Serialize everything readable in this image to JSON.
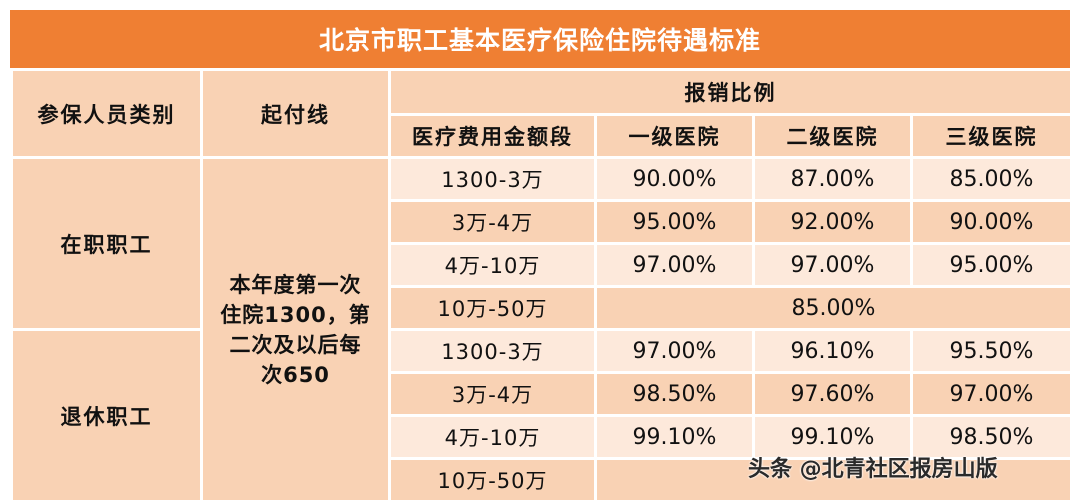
{
  "title": "北京市职工基本医疗保险住院待遇标准",
  "headers": {
    "category": "参保人员类别",
    "threshold": "起付线",
    "reimbursement": "报销比例",
    "band": "医疗费用金额段",
    "level1": "一级医院",
    "level2": "二级医院",
    "level3": "三级医院"
  },
  "threshold_lines": [
    "本年度第一次",
    "住院1300，第",
    "二次及以后每",
    "次650"
  ],
  "groups": [
    {
      "category": "在职职工",
      "rows": [
        {
          "band": "1300-3万",
          "level1": "90.00%",
          "level2": "87.00%",
          "level3": "85.00%"
        },
        {
          "band": "3万-4万",
          "level1": "95.00%",
          "level2": "92.00%",
          "level3": "90.00%"
        },
        {
          "band": "4万-10万",
          "level1": "97.00%",
          "level2": "97.00%",
          "level3": "95.00%"
        },
        {
          "band": "10万-50万",
          "merged": "85.00%"
        }
      ]
    },
    {
      "category": "退休职工",
      "rows": [
        {
          "band": "1300-3万",
          "level1": "97.00%",
          "level2": "96.10%",
          "level3": "95.50%"
        },
        {
          "band": "3万-4万",
          "level1": "98.50%",
          "level2": "97.60%",
          "level3": "97.00%"
        },
        {
          "band": "4万-10万",
          "level1": "99.10%",
          "level2": "99.10%",
          "level3": "98.50%"
        },
        {
          "band": "10万-50万",
          "merged": ""
        }
      ]
    }
  ],
  "watermark": "头条 @北青社区报房山版",
  "colors": {
    "title_bg": "#ef7f33",
    "header_bg": "#f9d2b4",
    "row_light": "#fde9db",
    "row_dark": "#f9d2b4"
  }
}
